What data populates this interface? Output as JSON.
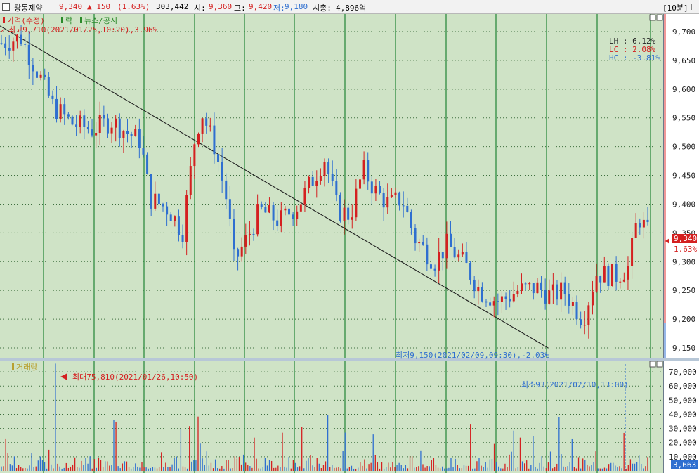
{
  "header": {
    "name": "광동제약",
    "price": "9,340",
    "change": "▲ 150",
    "pct": "(1.63%)",
    "volume": "303,442",
    "open_label": "시:",
    "open": "9,360",
    "high_label": "고:",
    "high": "9,420",
    "low_label": "저:",
    "low": "9,180",
    "mcap_label": "시총:",
    "mcap": "4,896억",
    "interval": "[10분]"
  },
  "price_panel": {
    "legend_price": "가격(수정)",
    "legend_drop": "락",
    "legend_news": "뉴스/공시",
    "max_label": "최고9,710(2021/01/25,10:20),3.96%",
    "min_label": "최저9,150(2021/02/09,09:30),-2.03%",
    "lh": "LH :  6.12%",
    "lc": "LC :  2.08%",
    "hc": "HC : -3.81%",
    "last_price": "9,340",
    "last_pct": "1.63%"
  },
  "volume_panel": {
    "legend": "거래량",
    "max_label": "최대75,810(2021/01/26,10:50)",
    "min_label": "최소93(2021/02/10,13:00)",
    "last_volume": "3,663"
  },
  "colors": {
    "bg": "#cfe3c6",
    "up": "#d42020",
    "down": "#2f6fd0",
    "grid": "#2e8b40",
    "axis_bg": "#ffffff"
  },
  "chart_data": [
    {
      "type": "candlestick",
      "title": "",
      "yaxis_ticks": [
        9150,
        9200,
        9250,
        9300,
        9350,
        9400,
        9450,
        9500,
        9550,
        9600,
        9650,
        9700
      ],
      "yaxis_tick_labels": [
        "9,150",
        "9,200",
        "9,250",
        "9,300",
        "9,350",
        "9,400",
        "9,450",
        "9,500",
        "9,550",
        "9,600",
        "9,650",
        "9,700"
      ],
      "ylim": [
        9130,
        9720
      ],
      "trend_line": {
        "from": 9710,
        "to": 9150
      },
      "anchors": [
        [
          0,
          9680
        ],
        [
          0.03,
          9690
        ],
        [
          0.06,
          9620
        ],
        [
          0.08,
          9570
        ],
        [
          0.11,
          9540
        ],
        [
          0.14,
          9530
        ],
        [
          0.17,
          9545
        ],
        [
          0.2,
          9520
        ],
        [
          0.215,
          9510
        ],
        [
          0.23,
          9410
        ],
        [
          0.26,
          9390
        ],
        [
          0.28,
          9350
        ],
        [
          0.3,
          9520
        ],
        [
          0.31,
          9560
        ],
        [
          0.33,
          9500
        ],
        [
          0.35,
          9400
        ],
        [
          0.36,
          9300
        ],
        [
          0.38,
          9340
        ],
        [
          0.4,
          9390
        ],
        [
          0.43,
          9370
        ],
        [
          0.46,
          9400
        ],
        [
          0.49,
          9460
        ],
        [
          0.5,
          9480
        ],
        [
          0.52,
          9390
        ],
        [
          0.54,
          9380
        ],
        [
          0.56,
          9460
        ],
        [
          0.58,
          9420
        ],
        [
          0.6,
          9400
        ],
        [
          0.62,
          9410
        ],
        [
          0.64,
          9340
        ],
        [
          0.67,
          9300
        ],
        [
          0.69,
          9330
        ],
        [
          0.72,
          9290
        ],
        [
          0.74,
          9250
        ],
        [
          0.77,
          9230
        ],
        [
          0.8,
          9250
        ],
        [
          0.83,
          9255
        ],
        [
          0.85,
          9240
        ],
        [
          0.87,
          9250
        ],
        [
          0.9,
          9200
        ],
        [
          0.92,
          9280
        ],
        [
          0.95,
          9275
        ],
        [
          0.97,
          9290
        ],
        [
          0.985,
          9380
        ],
        [
          1,
          9350
        ]
      ],
      "candle_count": 165,
      "grid": "on"
    },
    {
      "type": "bar",
      "title": "",
      "yaxis_ticks": [
        10000,
        20000,
        30000,
        40000,
        50000,
        60000,
        70000
      ],
      "yaxis_tick_labels": [
        "10,000",
        "20,000",
        "30,000",
        "40,000",
        "50,000",
        "60,000",
        "70,000"
      ],
      "ylim": [
        0,
        78000
      ],
      "max": 75810,
      "min": 93,
      "last": 3663,
      "grid": "on"
    }
  ]
}
